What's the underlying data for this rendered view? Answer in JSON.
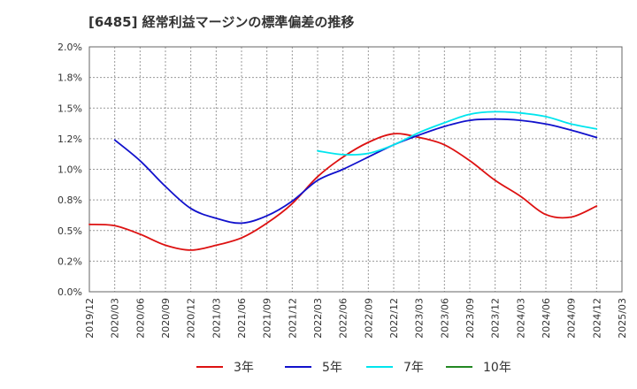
{
  "chart_data": {
    "type": "line",
    "title": "[6485]  経常利益マージンの標準偏差の推移",
    "x": [
      "2019/12",
      "2020/03",
      "2020/06",
      "2020/09",
      "2020/12",
      "2021/03",
      "2021/06",
      "2021/09",
      "2021/12",
      "2022/03",
      "2022/06",
      "2022/09",
      "2022/12",
      "2023/03",
      "2023/06",
      "2023/09",
      "2023/12",
      "2024/03",
      "2024/06",
      "2024/09",
      "2024/12",
      "2025/03"
    ],
    "ylim": [
      0,
      2.0
    ],
    "yticks": [
      "0.0%",
      "0.2%",
      "0.5%",
      "0.8%",
      "1.0%",
      "1.2%",
      "1.5%",
      "1.8%",
      "2.0%"
    ],
    "ytick_values": [
      0,
      0.25,
      0.5,
      0.75,
      1.0,
      1.25,
      1.5,
      1.75,
      2.0
    ],
    "grid": true,
    "legend_position": "bottom",
    "series": [
      {
        "name": "3年",
        "color": "#dd1111",
        "values": [
          0.55,
          0.54,
          0.47,
          0.38,
          0.34,
          0.38,
          0.44,
          0.56,
          0.72,
          0.94,
          1.1,
          1.22,
          1.29,
          1.26,
          1.2,
          1.07,
          0.91,
          0.78,
          0.63,
          0.61,
          0.7,
          null
        ]
      },
      {
        "name": "5年",
        "color": "#1111cc",
        "values": [
          null,
          1.24,
          1.07,
          0.86,
          0.68,
          0.6,
          0.56,
          0.62,
          0.74,
          0.91,
          1.0,
          1.1,
          1.2,
          1.28,
          1.35,
          1.4,
          1.41,
          1.4,
          1.37,
          1.32,
          1.26,
          null
        ]
      },
      {
        "name": "7年",
        "color": "#00e5ee",
        "values": [
          null,
          null,
          null,
          null,
          null,
          null,
          null,
          null,
          null,
          1.15,
          1.12,
          1.13,
          1.2,
          1.3,
          1.38,
          1.45,
          1.47,
          1.46,
          1.43,
          1.37,
          1.33,
          null
        ]
      },
      {
        "name": "10年",
        "color": "#228822",
        "values": [
          null,
          null,
          null,
          null,
          null,
          null,
          null,
          null,
          null,
          null,
          null,
          null,
          null,
          null,
          null,
          null,
          null,
          null,
          null,
          null,
          null,
          null
        ]
      }
    ]
  }
}
